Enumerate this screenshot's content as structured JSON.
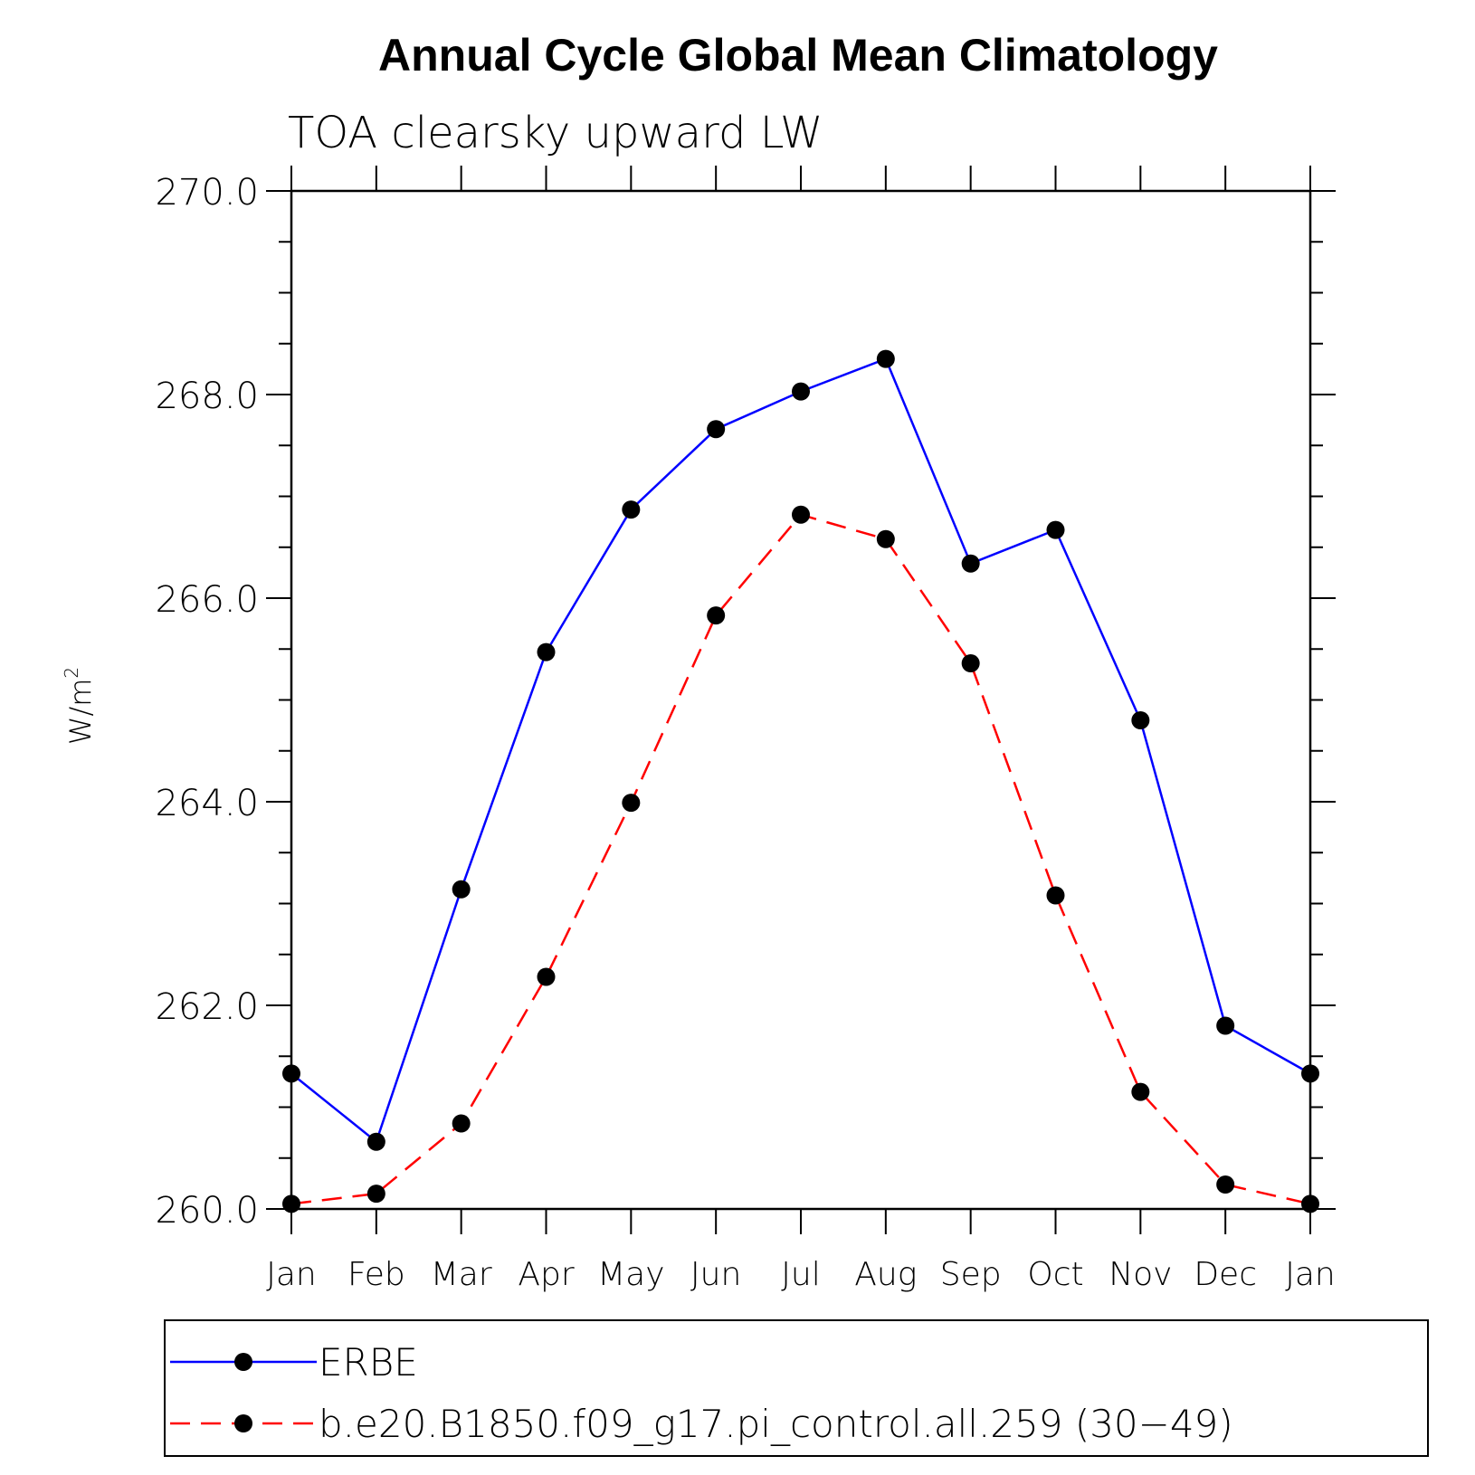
{
  "chart_data": {
    "type": "line",
    "title": "Annual Cycle Global Mean Climatology",
    "subtitle": "TOA clearsky upward LW",
    "ylabel": "W/m",
    "ylabel_superscript": "2",
    "categories": [
      "Jan",
      "Feb",
      "Mar",
      "Apr",
      "May",
      "Jun",
      "Jul",
      "Aug",
      "Sep",
      "Oct",
      "Nov",
      "Dec",
      "Jan"
    ],
    "ylim": [
      260.0,
      270.0
    ],
    "yticks": [
      "260.0",
      "262.0",
      "264.0",
      "266.0",
      "268.0",
      "270.0"
    ],
    "grid": false,
    "legend_position": "bottom",
    "series": [
      {
        "name": "ERBE",
        "color": "#0000ff",
        "dash": "solid",
        "marker": "circle",
        "values": [
          261.33,
          260.66,
          263.14,
          265.47,
          266.87,
          267.66,
          268.03,
          268.35,
          266.34,
          266.67,
          264.8,
          261.8,
          261.33
        ]
      },
      {
        "name": "b.e20.B1850.f09_g17.pi_control.all.259 (30−49)",
        "color": "#ff0000",
        "dash": "dashed",
        "marker": "circle",
        "values": [
          260.05,
          260.15,
          260.84,
          262.28,
          263.99,
          265.83,
          266.82,
          266.58,
          265.36,
          263.08,
          261.15,
          260.24,
          260.05
        ]
      }
    ]
  }
}
